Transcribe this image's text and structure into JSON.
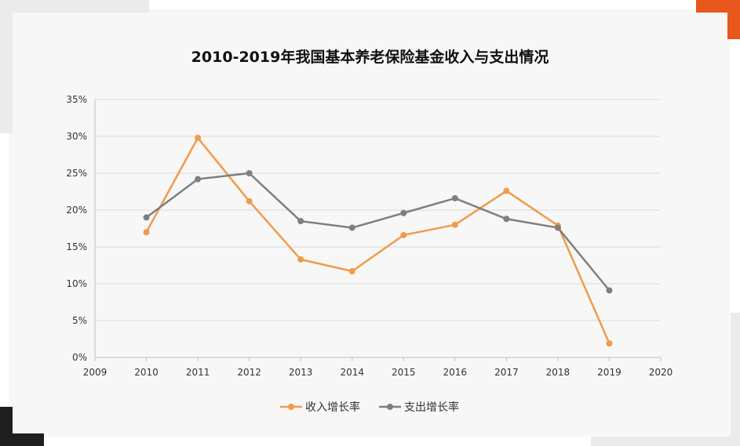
{
  "chart_data": {
    "type": "line",
    "title": "2010-2019年我国基本养老保险基金收入与支出情况",
    "xlabel": "",
    "ylabel": "",
    "x_ticks": [
      "2009",
      "2010",
      "2011",
      "2012",
      "2013",
      "2014",
      "2015",
      "2016",
      "2017",
      "2018",
      "2019",
      "2020"
    ],
    "xlim": [
      2009,
      2020
    ],
    "ylim": [
      0,
      35
    ],
    "y_ticks": [
      "0%",
      "5%",
      "10%",
      "15%",
      "20%",
      "25%",
      "30%",
      "35%"
    ],
    "grid": "horizontal",
    "legend_position": "bottom",
    "x": [
      2010,
      2011,
      2012,
      2013,
      2014,
      2015,
      2016,
      2017,
      2018,
      2019
    ],
    "series": [
      {
        "name": "收入增长率",
        "color": "#f29a4a",
        "values": [
          17.0,
          29.8,
          21.2,
          13.3,
          11.7,
          16.6,
          18.0,
          22.6,
          17.9,
          1.9
        ]
      },
      {
        "name": "支出增长率",
        "color": "#7f7f7f",
        "values": [
          19.0,
          24.2,
          25.0,
          18.5,
          17.6,
          19.6,
          21.6,
          18.8,
          17.6,
          9.1
        ]
      }
    ]
  }
}
